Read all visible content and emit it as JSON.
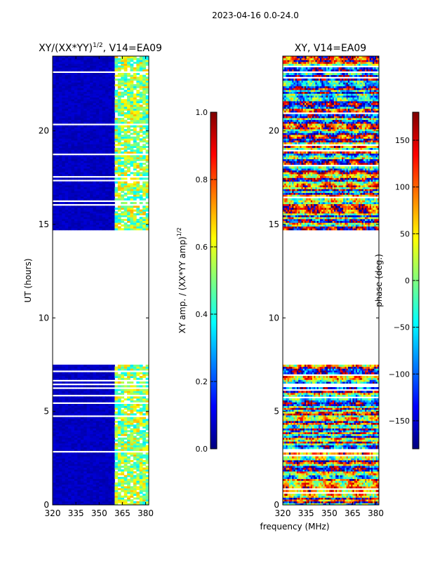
{
  "figure": {
    "suptitle": "2023-04-16 0.0-24.0",
    "shared_xlabel": "frequency (MHz)"
  },
  "colors": {
    "jet": [
      "#00007f",
      "#0000ff",
      "#007fff",
      "#00ffff",
      "#7fff7f",
      "#ffff00",
      "#ff7f00",
      "#ff0000",
      "#7f0000"
    ]
  },
  "chart_data": [
    {
      "type": "heatmap",
      "title_prefix": "XY/(XX*YY)",
      "title_exponent": "1/2",
      "title_suffix": ", V14=EA09",
      "xlabel": "",
      "ylabel": "UT (hours)",
      "xlim": [
        320,
        382
      ],
      "ylim": [
        0,
        24
      ],
      "xticks": [
        320,
        335,
        350,
        365,
        380
      ],
      "yticks": [
        0,
        5,
        10,
        15,
        20
      ],
      "data_gaps_hours": [
        [
          7.5,
          14.7
        ]
      ],
      "description_values": {
        "background_level": 0.05,
        "high_freq_band_level": 0.55,
        "band_start_mhz": 360
      },
      "colorbar": {
        "label": "XY amp. / (XX*YY amp)",
        "label_exponent": "1/2",
        "range": [
          0.0,
          1.0
        ],
        "ticks": [
          "0.0",
          "0.2",
          "0.4",
          "0.6",
          "0.8",
          "1.0"
        ]
      }
    },
    {
      "type": "heatmap",
      "title": "XY, V14=EA09",
      "xlabel": "frequency (MHz)",
      "ylabel": "",
      "xlim": [
        320,
        382
      ],
      "ylim": [
        0,
        24
      ],
      "xticks": [
        320,
        335,
        350,
        365,
        380
      ],
      "yticks": [
        0,
        5,
        10,
        15,
        20
      ],
      "data_gaps_hours": [
        [
          7.5,
          14.7
        ]
      ],
      "colorbar": {
        "label": "phase (deg.)",
        "range": [
          -180,
          180
        ],
        "ticks": [
          "−150",
          "−100",
          "−50",
          "0",
          "50",
          "100",
          "150"
        ]
      }
    }
  ]
}
